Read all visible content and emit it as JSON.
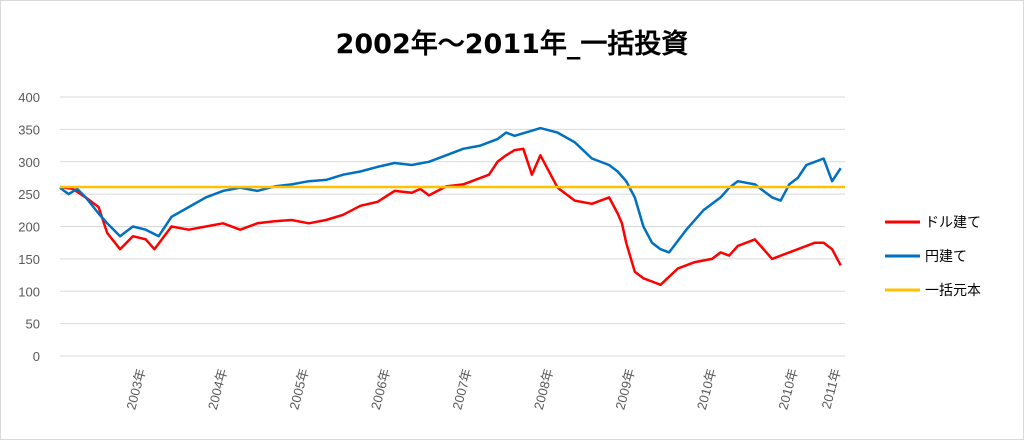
{
  "chart_data": {
    "type": "line",
    "title": "2002年～2011年_一括投資",
    "ylim": [
      0,
      400
    ],
    "yticks": [
      "0",
      "50",
      "100",
      "150",
      "200",
      "250",
      "300",
      "350",
      "400"
    ],
    "xlim": [
      2002.0,
      2011.15
    ],
    "xtick_labels": [
      "2003年",
      "2004年",
      "2005年",
      "2006年",
      "2007年",
      "2008年",
      "2009年",
      "2010年",
      "2010年",
      "2011年"
    ],
    "xtick_positions": [
      2003.0,
      2003.95,
      2004.9,
      2005.85,
      2006.8,
      2007.75,
      2008.7,
      2009.65,
      2010.6,
      2011.1
    ],
    "grid": true,
    "legend": "right",
    "series": [
      {
        "name": "ドル建て",
        "color": "#ff0000",
        "x": [
          2002.0,
          2002.15,
          2002.3,
          2002.45,
          2002.55,
          2002.7,
          2002.85,
          2003.0,
          2003.1,
          2003.3,
          2003.5,
          2003.7,
          2003.9,
          2004.1,
          2004.3,
          2004.5,
          2004.7,
          2004.9,
          2005.1,
          2005.3,
          2005.5,
          2005.7,
          2005.9,
          2006.1,
          2006.2,
          2006.3,
          2006.5,
          2006.7,
          2006.9,
          2007.0,
          2007.1,
          2007.2,
          2007.3,
          2007.4,
          2007.5,
          2007.6,
          2007.8,
          2008.0,
          2008.2,
          2008.4,
          2008.5,
          2008.55,
          2008.6,
          2008.7,
          2008.8,
          2008.9,
          2009.0,
          2009.2,
          2009.4,
          2009.6,
          2009.7,
          2009.8,
          2009.9,
          2010.1,
          2010.3,
          2010.5,
          2010.6,
          2010.7,
          2010.8,
          2010.9,
          2011.0,
          2011.1
        ],
        "values": [
          261,
          258,
          245,
          230,
          190,
          165,
          185,
          180,
          165,
          200,
          195,
          200,
          205,
          195,
          205,
          208,
          210,
          205,
          210,
          218,
          232,
          238,
          255,
          252,
          258,
          248,
          262,
          265,
          275,
          280,
          300,
          310,
          318,
          320,
          280,
          310,
          260,
          240,
          235,
          245,
          220,
          205,
          175,
          130,
          120,
          115,
          110,
          135,
          145,
          150,
          160,
          155,
          170,
          180,
          150,
          160,
          165,
          170,
          175,
          175,
          165,
          140
        ]
      },
      {
        "name": "円建て",
        "color": "#0070c0",
        "x": [
          2002.0,
          2002.1,
          2002.2,
          2002.3,
          2002.45,
          2002.55,
          2002.7,
          2002.85,
          2003.0,
          2003.15,
          2003.3,
          2003.5,
          2003.7,
          2003.9,
          2004.1,
          2004.3,
          2004.5,
          2004.7,
          2004.9,
          2005.1,
          2005.3,
          2005.5,
          2005.7,
          2005.9,
          2006.1,
          2006.3,
          2006.5,
          2006.7,
          2006.9,
          2007.1,
          2007.2,
          2007.3,
          2007.5,
          2007.6,
          2007.8,
          2008.0,
          2008.2,
          2008.4,
          2008.5,
          2008.6,
          2008.7,
          2008.8,
          2008.9,
          2009.0,
          2009.1,
          2009.3,
          2009.5,
          2009.7,
          2009.8,
          2009.9,
          2010.1,
          2010.3,
          2010.4,
          2010.5,
          2010.6,
          2010.65,
          2010.7,
          2010.8,
          2010.9,
          2011.0,
          2011.1
        ],
        "values": [
          260,
          250,
          258,
          245,
          220,
          205,
          185,
          200,
          195,
          185,
          215,
          230,
          245,
          255,
          260,
          255,
          262,
          265,
          270,
          272,
          280,
          285,
          292,
          298,
          295,
          300,
          310,
          320,
          325,
          335,
          345,
          340,
          348,
          352,
          345,
          330,
          305,
          295,
          285,
          270,
          245,
          200,
          175,
          165,
          160,
          195,
          225,
          245,
          260,
          270,
          265,
          245,
          240,
          265,
          275,
          285,
          295,
          300,
          305,
          270,
          290
        ]
      },
      {
        "name": "一括元本",
        "color": "#ffc000",
        "x": [
          2002.0,
          2011.15
        ],
        "values": [
          261,
          261
        ]
      }
    ]
  }
}
